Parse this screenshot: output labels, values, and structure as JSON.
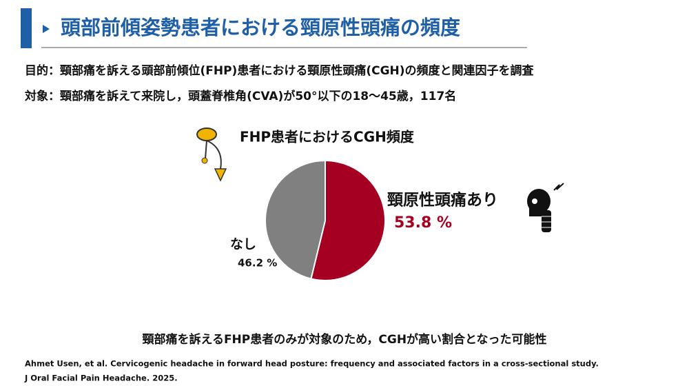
{
  "header": {
    "title": "頭部前傾姿勢患者における頸原性頭痛の頻度"
  },
  "purpose": "目的：頸部痛を訴える頭部前傾位(FHP)患者における頸原性頭痛(CGH)の頻度と関連因子を調査",
  "subjects": "対象：頸部痛を訴えて来院し，頭蓋脊椎角(CVA)が50°以下の18〜45歳，117名",
  "chart_data": {
    "type": "pie",
    "title": "FHP患者におけるCGH頻度",
    "categories": [
      "頸原性頭痛あり",
      "なし"
    ],
    "values": [
      53.8,
      46.2
    ],
    "value_labels": [
      "53.8 %",
      "46.2 %"
    ],
    "colors": [
      "#a50021",
      "#808080"
    ]
  },
  "conclusion": "頸部痛を訴えるFHP患者のみが対象のため，CGHが高い割合となった可能性",
  "citation": [
    "Ahmet Usen, et al. Cervicogenic headache in forward head posture: frequency and associated factors in a cross-sectional study.",
    "J Oral Facial Pain Headache. 2025."
  ]
}
